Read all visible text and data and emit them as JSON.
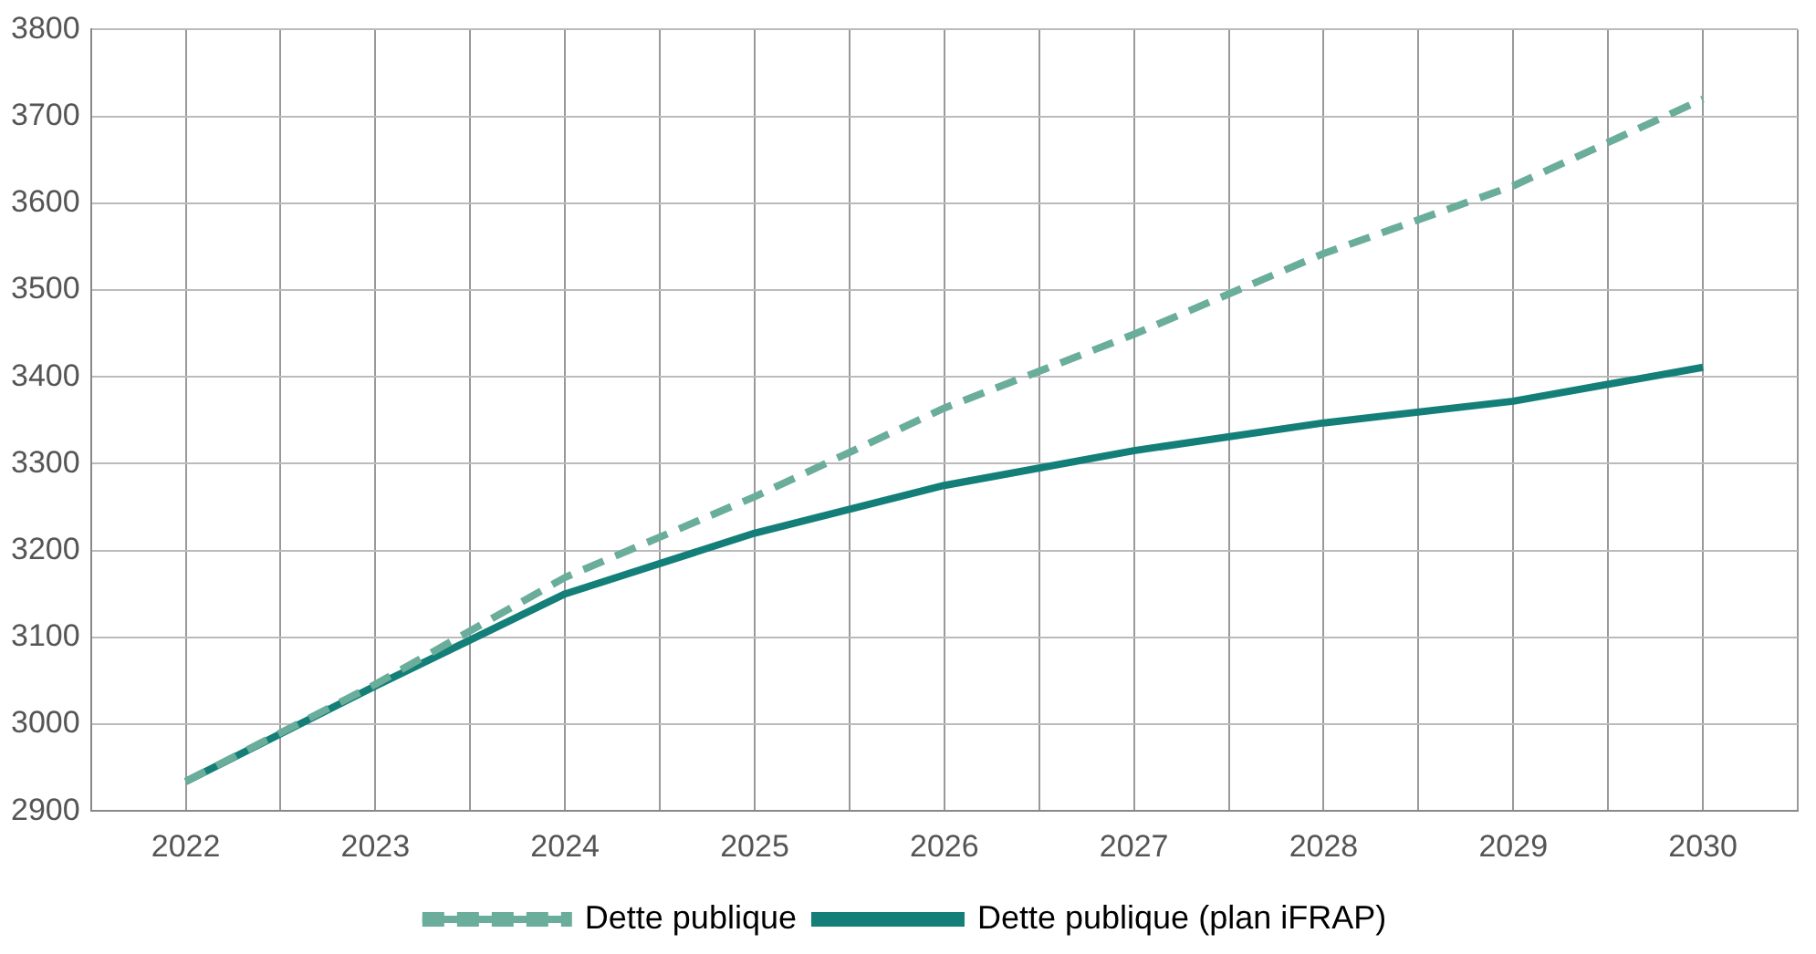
{
  "chart_data": {
    "type": "line",
    "x": [
      2022,
      2023,
      2024,
      2025,
      2026,
      2027,
      2028,
      2029,
      2030
    ],
    "series": [
      {
        "name": "Dette publique",
        "color": "#6aad9b",
        "line_style": "dashed",
        "values": [
          2934,
          3046,
          3169,
          3262,
          3364,
          3449,
          3542,
          3620,
          3720
        ]
      },
      {
        "name": "Dette publique (plan iFRAP)",
        "color": "#137f78",
        "line_style": "solid",
        "values": [
          2934,
          3044,
          3150,
          3220,
          3275,
          3315,
          3347,
          3372,
          3411
        ]
      }
    ],
    "xlim": [
      2021.5,
      2030.5
    ],
    "xticks": [
      {
        "value": 2021.5,
        "label": null
      },
      2022,
      {
        "value": 2022.5,
        "label": null
      },
      2023,
      {
        "value": 2023.5,
        "label": null
      },
      2024,
      {
        "value": 2024.5,
        "label": null
      },
      2025,
      {
        "value": 2025.5,
        "label": null
      },
      2026,
      {
        "value": 2026.5,
        "label": null
      },
      2027,
      {
        "value": 2027.5,
        "label": null
      },
      2028,
      {
        "value": 2028.5,
        "label": null
      },
      2029,
      {
        "value": 2029.5,
        "label": null
      },
      2030,
      {
        "value": 2030.5,
        "label": null
      }
    ],
    "ylim": [
      2900,
      3800
    ],
    "yticks": [
      2900,
      3000,
      3100,
      3200,
      3300,
      3400,
      3500,
      3600,
      3700,
      3800
    ],
    "grid": true,
    "legend": "bottom",
    "marker": "none"
  }
}
